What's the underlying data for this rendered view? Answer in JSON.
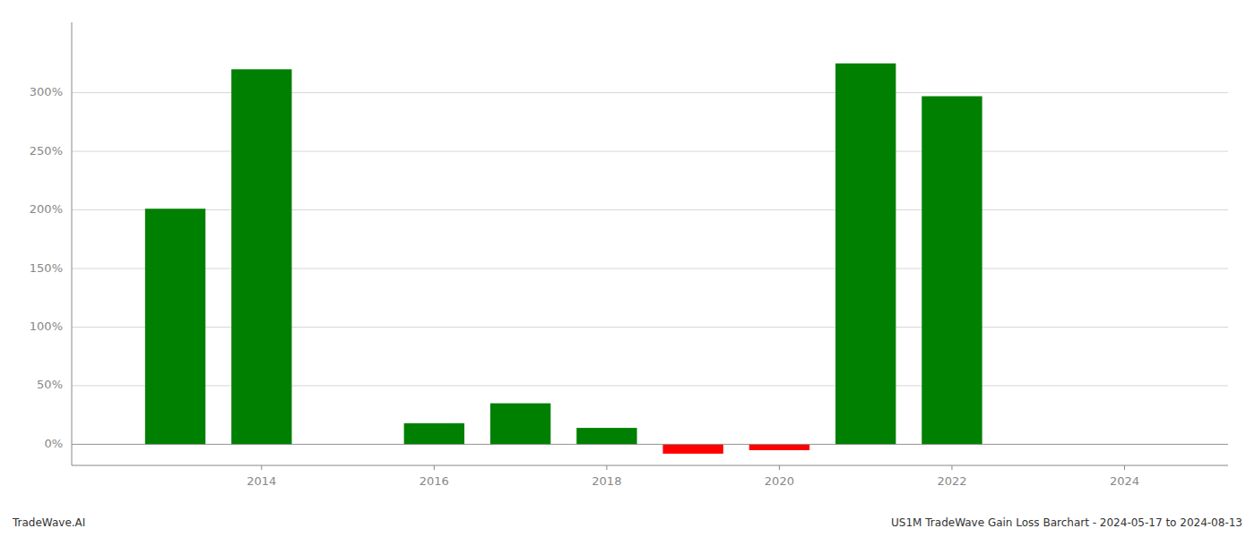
{
  "chart_data": {
    "type": "bar",
    "x": [
      2013,
      2014,
      2016,
      2017,
      2018,
      2019,
      2020,
      2021,
      2022
    ],
    "values": [
      2.01,
      3.2,
      0.18,
      0.35,
      0.14,
      -0.08,
      -0.05,
      3.25,
      2.97
    ],
    "colors": [
      "#008000",
      "#008000",
      "#008000",
      "#008000",
      "#008000",
      "#ff0000",
      "#ff0000",
      "#008000",
      "#008000"
    ],
    "xlim": [
      2011.8,
      2025.2
    ],
    "xticks": [
      2014,
      2016,
      2018,
      2020,
      2022,
      2024
    ],
    "ylim": [
      -0.18,
      3.6
    ],
    "yticks": [
      {
        "value": 0.0,
        "label": "0%"
      },
      {
        "value": 0.5,
        "label": "50%"
      },
      {
        "value": 1.0,
        "label": "100%"
      },
      {
        "value": 1.5,
        "label": "150%"
      },
      {
        "value": 2.0,
        "label": "200%"
      },
      {
        "value": 2.5,
        "label": "250%"
      },
      {
        "value": 3.0,
        "label": "300%"
      }
    ],
    "grid": true,
    "annotations": [
      "TradeWave.AI",
      "US1M TradeWave Gain Loss Barchart - 2024-05-17 to 2024-08-13"
    ]
  }
}
